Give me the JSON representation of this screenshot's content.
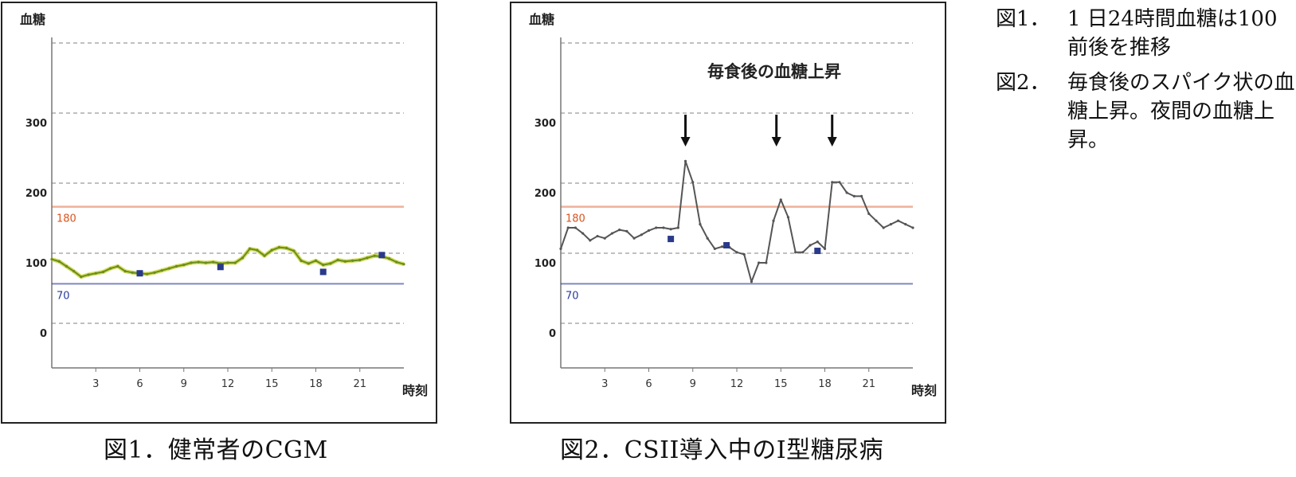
{
  "chart_data": [
    {
      "type": "line",
      "ylabel": "血糖",
      "xlabel": "時刻",
      "xlim": [
        0,
        24
      ],
      "ylim": [
        -50,
        450
      ],
      "yticks": [
        0,
        100,
        200,
        300
      ],
      "xticks": [
        3,
        6,
        9,
        12,
        15,
        18,
        21
      ],
      "reference_lines": [
        {
          "value": 180,
          "label": "180",
          "color": "#d9541e"
        },
        {
          "value": 70,
          "label": "70",
          "color": "#2a3a9a"
        }
      ],
      "series": [
        {
          "color": "#6a8e1a",
          "x": [
            0,
            0.5,
            1,
            1.5,
            2,
            2.5,
            3,
            3.5,
            4,
            4.5,
            5,
            5.5,
            6,
            6.5,
            7,
            7.5,
            8,
            8.5,
            9,
            9.5,
            10,
            10.5,
            11,
            11.5,
            12,
            12.5,
            13,
            13.5,
            14,
            14.5,
            15,
            15.5,
            16,
            16.5,
            17,
            17.5,
            18,
            18.5,
            19,
            19.5,
            20,
            20.5,
            21,
            21.5,
            22,
            22.5,
            23,
            23.5,
            24
          ],
          "values": [
            105,
            102,
            95,
            88,
            80,
            83,
            85,
            87,
            92,
            95,
            88,
            86,
            85,
            84,
            86,
            89,
            92,
            95,
            97,
            100,
            101,
            100,
            101,
            99,
            100,
            100,
            107,
            120,
            118,
            110,
            118,
            122,
            121,
            117,
            103,
            99,
            103,
            97,
            99,
            104,
            102,
            103,
            104,
            107,
            110,
            109,
            106,
            101,
            98
          ]
        }
      ],
      "markers": [
        {
          "x": 6,
          "y": 85
        },
        {
          "x": 11.5,
          "y": 94
        },
        {
          "x": 18.5,
          "y": 87
        },
        {
          "x": 22.5,
          "y": 111
        }
      ]
    },
    {
      "type": "line",
      "title": "毎食後の血糖上昇",
      "ylabel": "血糖",
      "xlabel": "時刻",
      "xlim": [
        0,
        24
      ],
      "ylim": [
        -50,
        450
      ],
      "yticks": [
        0,
        100,
        200,
        300
      ],
      "xticks": [
        3,
        6,
        9,
        12,
        15,
        18,
        21
      ],
      "reference_lines": [
        {
          "value": 180,
          "label": "180",
          "color": "#d9541e"
        },
        {
          "value": 70,
          "label": "70",
          "color": "#2a3a9a"
        }
      ],
      "series": [
        {
          "color": "#555555",
          "x": [
            0,
            0.5,
            1,
            1.5,
            2,
            2.5,
            3,
            3.5,
            4,
            4.5,
            5,
            5.5,
            6,
            6.5,
            7,
            7.5,
            8,
            8.5,
            9,
            9.5,
            10,
            10.5,
            11,
            11.5,
            12,
            12.5,
            13,
            13.5,
            14,
            14.5,
            15,
            15.5,
            16,
            16.5,
            17,
            17.5,
            18,
            18.5,
            19,
            19.5,
            20,
            20.5,
            21,
            21.5,
            22,
            22.5,
            23,
            23.5,
            24
          ],
          "values": [
            120,
            150,
            150,
            142,
            132,
            138,
            135,
            142,
            147,
            145,
            135,
            140,
            146,
            150,
            150,
            148,
            150,
            245,
            215,
            155,
            135,
            120,
            123,
            122,
            115,
            112,
            73,
            100,
            100,
            160,
            190,
            165,
            115,
            115,
            125,
            130,
            120,
            215,
            215,
            200,
            195,
            195,
            170,
            160,
            150,
            155,
            160,
            155,
            150
          ]
        }
      ],
      "arrows_at_x": [
        8.5,
        14.7,
        18.5
      ],
      "markers": [
        {
          "x": 7.5,
          "y": 134
        },
        {
          "x": 11.3,
          "y": 125
        },
        {
          "x": 17.5,
          "y": 117
        }
      ]
    }
  ],
  "captions": {
    "fig1": "図1．健常者のCGM",
    "fig2": "図2．CSII導入中のI型糖尿病"
  },
  "notes": [
    {
      "num": "図1．",
      "text": "1 日24時間血糖は100前後を推移"
    },
    {
      "num": "図2．",
      "text": "毎食後のスパイク状の血糖上昇。夜間の血糖上昇。"
    }
  ]
}
